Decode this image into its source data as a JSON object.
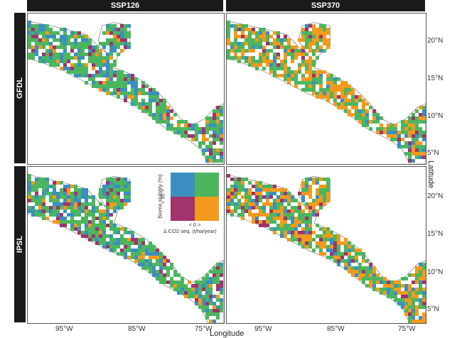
{
  "columns": [
    "SSP126",
    "SSP370"
  ],
  "rows": [
    "GFDL",
    "IPSL"
  ],
  "x_axis": {
    "title": "Longitude",
    "ticks": [
      "95°W",
      "85°W",
      "75°W"
    ]
  },
  "y_axis": {
    "title": "Latitude",
    "ticks": [
      "20°N",
      "15°N",
      "10°N",
      "5°N"
    ]
  },
  "legend": {
    "y_label": "Biome stability (%)",
    "y_marker": "< 50 >",
    "x_label": "Δ CO2 seq. (t/ha/year)",
    "x_marker": "< 0 >",
    "colors": {
      "top_left": "#3b8fc0",
      "top_right": "#4cb65f",
      "bottom_left": "#a0346b",
      "bottom_right": "#f39a1c"
    }
  },
  "colors": {
    "land_base": "#ffffff",
    "coast": "#666666",
    "panel_border": "#555555",
    "strip_bg": "#1a1a1a"
  }
}
